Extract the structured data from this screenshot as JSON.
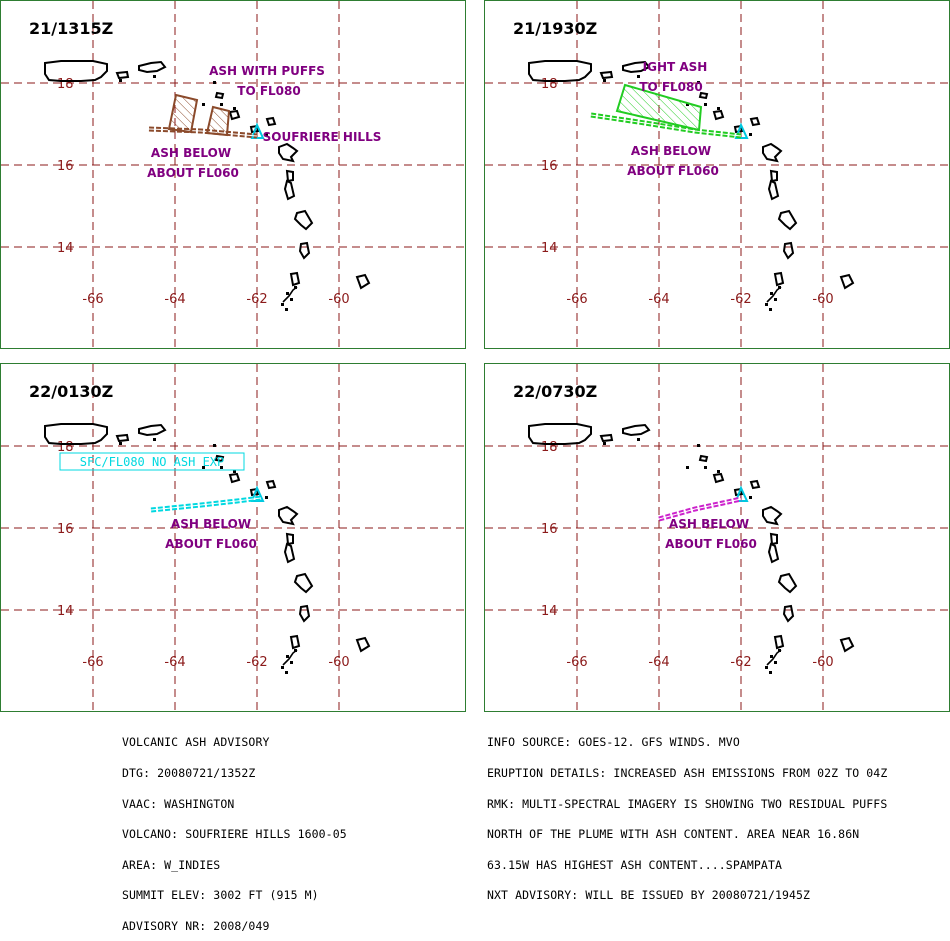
{
  "panels": [
    {
      "title": "21/1315Z",
      "labels": [
        "ASH WITH PUFFS",
        "TO FL080",
        "SOUFRIERE HILLS",
        "ASH BELOW",
        "ABOUT FL060"
      ],
      "ash_color": "#8b4a2b"
    },
    {
      "title": "21/1930Z",
      "labels": [
        "IGHT ASH",
        "TO FL080",
        "ASH BELOW",
        "ABOUT FL060"
      ],
      "ash_color": "#22cc22"
    },
    {
      "title": "22/0130Z",
      "labels": [
        "SFC/FL080 NO ASH EXP",
        "ASH BELOW",
        "ABOUT FL060"
      ],
      "ash_color": "#00d8e0"
    },
    {
      "title": "22/0730Z",
      "labels": [
        "ASH BELOW",
        "ABOUT FL060"
      ],
      "ash_color": "#cc22cc"
    }
  ],
  "axes": {
    "lat_ticks": [
      "18",
      "16",
      "14"
    ],
    "lon_ticks": [
      "-66",
      "-64",
      "-62",
      "-60"
    ]
  },
  "colors": {
    "grid": "#8b1a1a",
    "label": "#800080",
    "volcano": "#00c8e0",
    "border": "#2e7d32"
  },
  "advisory_left": [
    "VOLCANIC ASH ADVISORY",
    "DTG: 20080721/1352Z",
    "VAAC: WASHINGTON",
    "VOLCANO: SOUFRIERE HILLS 1600-05",
    "AREA: W_INDIES",
    "SUMMIT ELEV: 3002 FT (915 M)",
    "ADVISORY NR: 2008/049"
  ],
  "advisory_right": [
    "INFO SOURCE: GOES-12. GFS WINDS. MVO",
    "ERUPTION DETAILS: INCREASED ASH EMISSIONS FROM 02Z TO 04Z",
    "RMK: MULTI-SPECTRAL IMAGERY IS SHOWING TWO RESIDUAL PUFFS",
    "NORTH OF THE PLUME WITH ASH CONTENT. AREA NEAR 16.86N",
    "63.15W HAS HIGHEST ASH CONTENT....SPAMPATA",
    "NXT ADVISORY: WILL BE ISSUED BY 20080721/1945Z"
  ]
}
